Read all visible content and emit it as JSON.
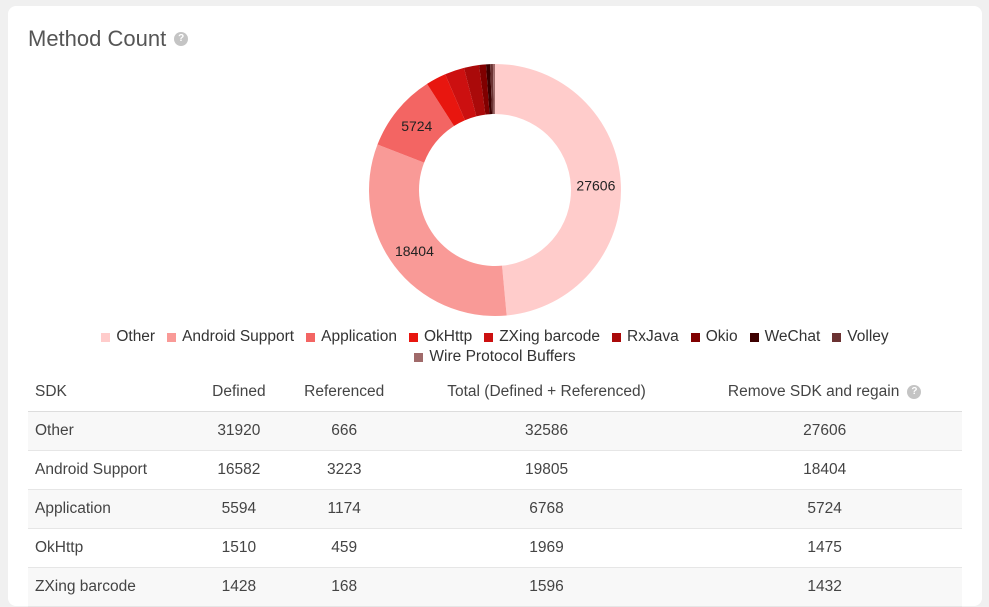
{
  "title": "Method Count",
  "colors": {
    "Other": "#ffcccb",
    "Android Support": "#f99a97",
    "Application": "#f36563",
    "OkHttp": "#e8160f",
    "ZXing barcode": "#cc1010",
    "RxJava": "#aa0a0a",
    "Okio": "#800000",
    "WeChat": "#3d0000",
    "Volley": "#6b3232",
    "Wire Protocol Buffers": "#a06a6a"
  },
  "chart_data": {
    "type": "pie",
    "donut": true,
    "categories": [
      "Other",
      "Android Support",
      "Application",
      "OkHttp",
      "ZXing barcode",
      "RxJava",
      "Okio",
      "WeChat",
      "Volley",
      "Wire Protocol Buffers"
    ],
    "values": [
      27606,
      18404,
      5724,
      1475,
      1432,
      1100,
      500,
      300,
      200,
      150
    ],
    "data_labels": [
      "27606",
      "18404",
      "5724",
      "",
      "",
      "",
      "",
      "",
      "",
      ""
    ],
    "legend_position": "bottom"
  },
  "legend": [
    "Other",
    "Android Support",
    "Application",
    "OkHttp",
    "ZXing barcode",
    "RxJava",
    "Okio",
    "WeChat",
    "Volley",
    "Wire Protocol Buffers"
  ],
  "table": {
    "headers": [
      "SDK",
      "Defined",
      "Referenced",
      "Total (Defined + Referenced)",
      "Remove SDK and regain"
    ],
    "rows": [
      [
        "Other",
        "31920",
        "666",
        "32586",
        "27606"
      ],
      [
        "Android Support",
        "16582",
        "3223",
        "19805",
        "18404"
      ],
      [
        "Application",
        "5594",
        "1174",
        "6768",
        "5724"
      ],
      [
        "OkHttp",
        "1510",
        "459",
        "1969",
        "1475"
      ],
      [
        "ZXing barcode",
        "1428",
        "168",
        "1596",
        "1432"
      ]
    ]
  }
}
